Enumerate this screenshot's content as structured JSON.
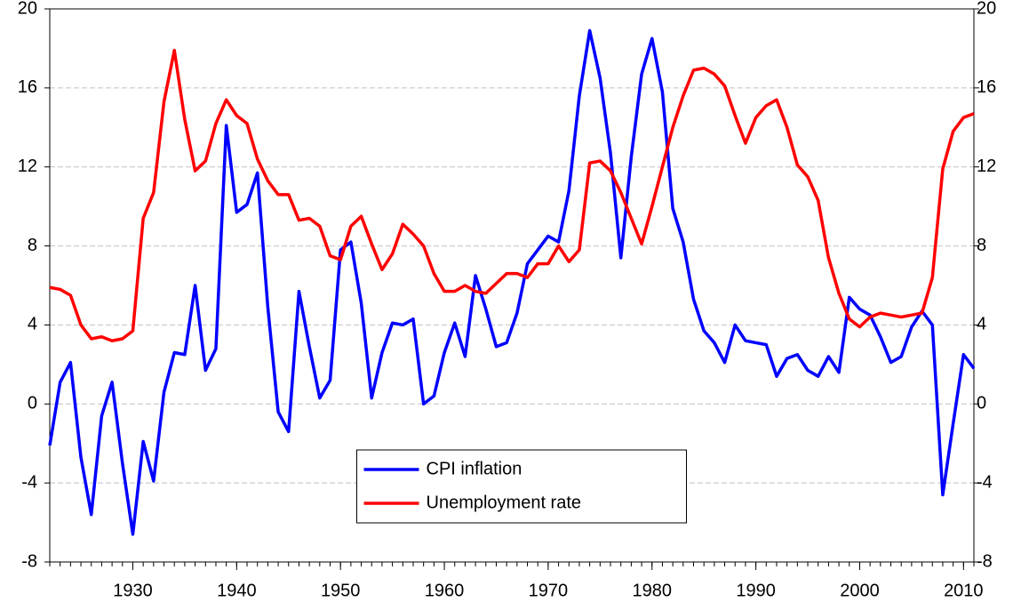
{
  "chart_data": {
    "type": "line",
    "x": [
      1922,
      1923,
      1924,
      1925,
      1926,
      1927,
      1928,
      1929,
      1930,
      1931,
      1932,
      1933,
      1934,
      1935,
      1936,
      1937,
      1938,
      1939,
      1940,
      1941,
      1942,
      1943,
      1944,
      1945,
      1946,
      1947,
      1948,
      1949,
      1950,
      1951,
      1952,
      1953,
      1954,
      1955,
      1956,
      1957,
      1958,
      1959,
      1960,
      1961,
      1962,
      1963,
      1964,
      1965,
      1966,
      1967,
      1968,
      1969,
      1970,
      1971,
      1972,
      1973,
      1974,
      1975,
      1976,
      1977,
      1978,
      1979,
      1980,
      1981,
      1982,
      1983,
      1984,
      1985,
      1986,
      1987,
      1988,
      1989,
      1990,
      1991,
      1992,
      1993,
      1994,
      1995,
      1996,
      1997,
      1998,
      1999,
      2000,
      2001,
      2002,
      2003,
      2004,
      2005,
      2006,
      2007,
      2008,
      2009,
      2010,
      2011
    ],
    "series": [
      {
        "name": "CPI inflation",
        "color": "#0000ff",
        "values": [
          -2.1,
          1.1,
          2.1,
          -2.7,
          -5.6,
          -0.6,
          1.1,
          -3.0,
          -6.6,
          -1.9,
          -3.9,
          0.6,
          2.6,
          2.5,
          6.0,
          1.7,
          2.8,
          14.1,
          9.7,
          10.1,
          11.7,
          4.9,
          -0.4,
          -1.4,
          5.7,
          2.9,
          0.3,
          1.2,
          7.8,
          8.2,
          5.1,
          0.3,
          2.6,
          4.1,
          4.0,
          4.3,
          0.0,
          0.4,
          2.6,
          4.1,
          2.4,
          6.5,
          4.8,
          2.9,
          3.1,
          4.6,
          7.1,
          7.8,
          8.5,
          8.2,
          10.8,
          15.6,
          18.9,
          16.5,
          12.7,
          7.4,
          12.5,
          16.7,
          18.5,
          15.8,
          9.9,
          8.2,
          5.3,
          3.7,
          3.1,
          2.1,
          4.0,
          3.2,
          3.1,
          3.0,
          1.4,
          2.3,
          2.5,
          1.7,
          1.4,
          2.4,
          1.6,
          5.4,
          4.8,
          4.5,
          3.4,
          2.1,
          2.4,
          3.9,
          4.7,
          4.0,
          -4.6,
          -1.0,
          2.5,
          1.8
        ]
      },
      {
        "name": "Unemployment rate",
        "color": "#ff0000",
        "values": [
          5.9,
          5.8,
          5.5,
          4.0,
          3.3,
          3.4,
          3.2,
          3.3,
          3.7,
          9.4,
          10.7,
          15.3,
          17.9,
          14.4,
          11.8,
          12.3,
          14.2,
          15.4,
          14.6,
          14.2,
          12.4,
          11.3,
          10.6,
          10.6,
          9.3,
          9.4,
          9.0,
          7.5,
          7.3,
          9.0,
          9.5,
          8.1,
          6.8,
          7.6,
          9.1,
          8.6,
          8.0,
          6.6,
          5.7,
          5.7,
          6.0,
          5.7,
          5.6,
          6.1,
          6.6,
          6.6,
          6.4,
          7.1,
          7.1,
          8.0,
          7.2,
          7.8,
          12.2,
          12.3,
          11.8,
          10.7,
          9.4,
          8.1,
          10.0,
          12.0,
          14.0,
          15.6,
          16.9,
          17.0,
          16.7,
          16.1,
          14.6,
          13.2,
          14.5,
          15.1,
          15.4,
          14.0,
          12.1,
          11.5,
          10.3,
          7.4,
          5.6,
          4.3,
          3.9,
          4.4,
          4.6,
          4.5,
          4.4,
          4.5,
          4.6,
          6.4,
          11.9,
          13.8,
          14.5,
          14.7
        ]
      }
    ],
    "xlim": [
      1922,
      2011
    ],
    "xticks": [
      1930,
      1940,
      1950,
      1960,
      1970,
      1980,
      1990,
      2000,
      2010
    ],
    "ylim": [
      -8,
      20
    ],
    "yticks": [
      -8,
      -4,
      0,
      4,
      8,
      12,
      16,
      20
    ],
    "y2lim": [
      -8,
      20
    ],
    "y2ticks": [
      -8,
      -4,
      0,
      4,
      8,
      12,
      16,
      20
    ],
    "grid": true,
    "legend": "bottom-center"
  }
}
